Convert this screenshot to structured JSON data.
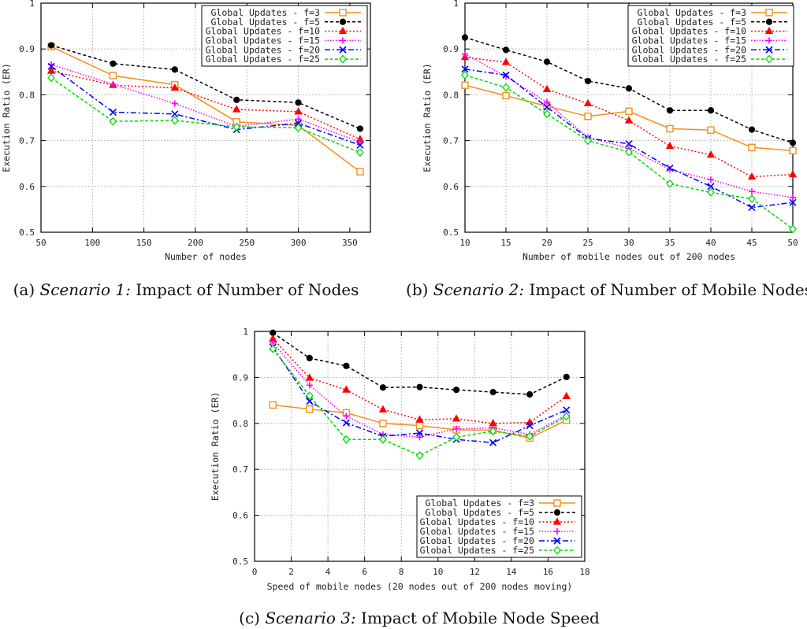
{
  "chart_data": [
    {
      "type": "line",
      "caption_prefix": "(a)",
      "caption_scenario": "Scenario 1:",
      "caption_text": "Impact of Number of Nodes",
      "xlabel": "Number of nodes",
      "ylabel": "Execution Ratio (ER)",
      "xlim": [
        50,
        370
      ],
      "ylim": [
        0.5,
        1.0
      ],
      "xticks": [
        50,
        100,
        150,
        200,
        250,
        300,
        350
      ],
      "yticks": [
        0.5,
        0.6,
        0.7,
        0.8,
        0.9,
        1.0
      ],
      "ytick_labels": [
        "0.5",
        "0.6",
        "0.7",
        "0.8",
        "0.9",
        "1"
      ],
      "x": [
        60,
        120,
        180,
        240,
        300,
        360
      ],
      "series": [
        {
          "name": "Global Updates - f=3",
          "values": [
            0.905,
            0.842,
            0.822,
            0.741,
            0.733,
            0.632
          ]
        },
        {
          "name": "Global Updates - f=5",
          "values": [
            0.908,
            0.868,
            0.855,
            0.789,
            0.783,
            0.726
          ]
        },
        {
          "name": "Global Updates - f=10",
          "values": [
            0.852,
            0.821,
            0.815,
            0.768,
            0.763,
            0.703
          ]
        },
        {
          "name": "Global Updates - f=15",
          "values": [
            0.866,
            0.823,
            0.781,
            0.731,
            0.747,
            0.697
          ]
        },
        {
          "name": "Global Updates - f=20",
          "values": [
            0.862,
            0.762,
            0.758,
            0.724,
            0.738,
            0.69
          ]
        },
        {
          "name": "Global Updates - f=25",
          "values": [
            0.837,
            0.742,
            0.744,
            0.73,
            0.728,
            0.674
          ]
        }
      ]
    },
    {
      "type": "line",
      "caption_prefix": "(b)",
      "caption_scenario": "Scenario 2:",
      "caption_text": "Impact of Number of Mobile Nodes",
      "xlabel": "Number of mobile nodes out of 200 nodes",
      "ylabel": "Execution Ratio (ER)",
      "xlim": [
        10,
        50
      ],
      "ylim": [
        0.5,
        1.0
      ],
      "xticks": [
        10,
        15,
        20,
        25,
        30,
        35,
        40,
        45,
        50
      ],
      "yticks": [
        0.5,
        0.6,
        0.7,
        0.8,
        0.9,
        1.0
      ],
      "ytick_labels": [
        "0.5",
        "0.6",
        "0.7",
        "0.8",
        "0.9",
        "1"
      ],
      "x": [
        10,
        15,
        20,
        25,
        30,
        35,
        40,
        45,
        50
      ],
      "series": [
        {
          "name": "Global Updates - f=3",
          "values": [
            0.821,
            0.798,
            0.775,
            0.753,
            0.764,
            0.726,
            0.723,
            0.685,
            0.678
          ]
        },
        {
          "name": "Global Updates - f=5",
          "values": [
            0.925,
            0.898,
            0.872,
            0.83,
            0.814,
            0.766,
            0.766,
            0.724,
            0.695
          ]
        },
        {
          "name": "Global Updates - f=10",
          "values": [
            0.882,
            0.871,
            0.812,
            0.781,
            0.744,
            0.688,
            0.669,
            0.621,
            0.626
          ]
        },
        {
          "name": "Global Updates - f=15",
          "values": [
            0.889,
            0.84,
            0.784,
            0.707,
            0.683,
            0.637,
            0.615,
            0.589,
            0.576
          ]
        },
        {
          "name": "Global Updates - f=20",
          "values": [
            0.856,
            0.843,
            0.773,
            0.705,
            0.693,
            0.64,
            0.6,
            0.554,
            0.565
          ]
        },
        {
          "name": "Global Updates - f=25",
          "values": [
            0.843,
            0.816,
            0.758,
            0.7,
            0.675,
            0.606,
            0.587,
            0.573,
            0.507
          ]
        }
      ]
    },
    {
      "type": "line",
      "caption_prefix": "(c)",
      "caption_scenario": "Scenario 3:",
      "caption_text": "Impact of Mobile Node Speed",
      "xlabel": "Speed of mobile nodes (20 nodes out of 200 nodes moving)",
      "ylabel": "Execution Ratio (ER)",
      "xlim": [
        0,
        18
      ],
      "ylim": [
        0.5,
        1.0
      ],
      "xticks": [
        0,
        2,
        4,
        6,
        8,
        10,
        12,
        14,
        16,
        18
      ],
      "yticks": [
        0.5,
        0.6,
        0.7,
        0.8,
        0.9,
        1.0
      ],
      "ytick_labels": [
        "0.5",
        "0.6",
        "0.7",
        "0.8",
        "0.9",
        "1"
      ],
      "x": [
        1,
        3,
        5,
        7,
        9,
        11,
        13,
        15,
        17
      ],
      "series": [
        {
          "name": "Global Updates - f=3",
          "values": [
            0.84,
            0.831,
            0.823,
            0.8,
            0.795,
            0.786,
            0.785,
            0.768,
            0.807
          ]
        },
        {
          "name": "Global Updates - f=5",
          "values": [
            0.997,
            0.942,
            0.925,
            0.878,
            0.879,
            0.873,
            0.868,
            0.863,
            0.901
          ]
        },
        {
          "name": "Global Updates - f=10",
          "values": [
            0.984,
            0.899,
            0.873,
            0.83,
            0.808,
            0.81,
            0.8,
            0.802,
            0.859
          ]
        },
        {
          "name": "Global Updates - f=15",
          "values": [
            0.975,
            0.883,
            0.816,
            0.776,
            0.77,
            0.788,
            0.79,
            0.776,
            0.818
          ]
        },
        {
          "name": "Global Updates - f=20",
          "values": [
            0.966,
            0.848,
            0.801,
            0.772,
            0.779,
            0.765,
            0.758,
            0.795,
            0.829
          ]
        },
        {
          "name": "Global Updates - f=25",
          "values": [
            0.962,
            0.86,
            0.765,
            0.765,
            0.73,
            0.77,
            0.783,
            0.772,
            0.815
          ]
        }
      ]
    }
  ],
  "series_styles": [
    {
      "color": "#f39019",
      "dash": "",
      "marker": "square"
    },
    {
      "color": "#000000",
      "dash": "4 3",
      "marker": "dot"
    },
    {
      "color": "#ff0000",
      "dash": "2 2.5",
      "marker": "triangle"
    },
    {
      "color": "#ff00ff",
      "dash": "1.5 2",
      "marker": "plus"
    },
    {
      "color": "#0000ff",
      "dash": "7 3 2 3",
      "marker": "x"
    },
    {
      "color": "#00dd00",
      "dash": "4 2.5",
      "marker": "diamond"
    }
  ]
}
